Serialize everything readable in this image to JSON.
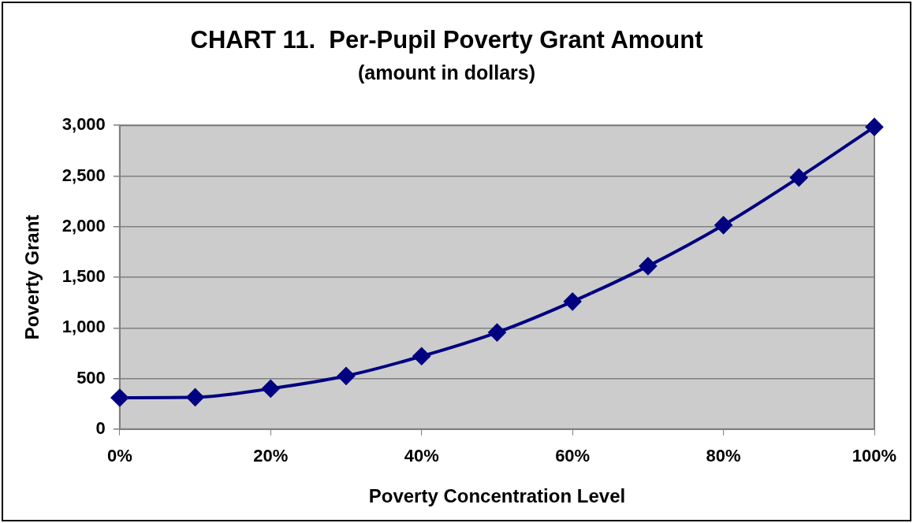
{
  "chart_data": {
    "type": "line",
    "title": "CHART 11.  Per-Pupil Poverty Grant Amount",
    "subtitle": "(amount in dollars)",
    "xlabel": "Poverty Concentration Level",
    "ylabel": "Poverty Grant",
    "x": [
      0,
      10,
      20,
      30,
      40,
      50,
      60,
      70,
      80,
      90,
      100
    ],
    "series": [
      {
        "color": "#000080",
        "values": [
          310,
          315,
          400,
          525,
          720,
          955,
          1260,
          1610,
          2015,
          2485,
          2985
        ]
      }
    ],
    "xlim": [
      0,
      100
    ],
    "xticks": [
      {
        "value": 0,
        "label": "0%"
      },
      {
        "value": 20,
        "label": "20%"
      },
      {
        "value": 40,
        "label": "40%"
      },
      {
        "value": 60,
        "label": "60%"
      },
      {
        "value": 80,
        "label": "80%"
      },
      {
        "value": 100,
        "label": "100%"
      }
    ],
    "ylim": [
      0,
      3000
    ],
    "yticks": [
      {
        "value": 0,
        "label": "0"
      },
      {
        "value": 500,
        "label": "500"
      },
      {
        "value": 1000,
        "label": "1,000"
      },
      {
        "value": 1500,
        "label": "1,500"
      },
      {
        "value": 2000,
        "label": "2,000"
      },
      {
        "value": 2500,
        "label": "2,500"
      },
      {
        "value": 3000,
        "label": "3,000"
      }
    ],
    "grid": "y",
    "marker": "diamond",
    "line_style": "solid"
  }
}
